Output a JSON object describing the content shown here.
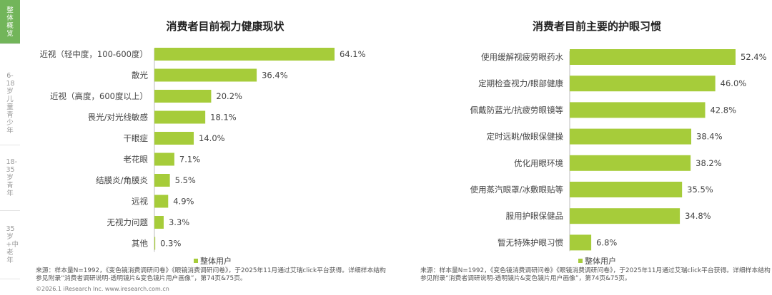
{
  "sidebar": {
    "items": [
      {
        "label": "整体概览",
        "active": true
      },
      {
        "label": "6-18岁儿童青少年",
        "active": false
      },
      {
        "label": "18-35岁青年",
        "active": false
      },
      {
        "label": "35岁+中老年",
        "active": false
      }
    ]
  },
  "colors": {
    "bar": "#a6cc3a",
    "active_nav": "#72b55a"
  },
  "charts": [
    {
      "title": "消费者目前视力健康现状",
      "legend": "整体用户",
      "source": "来源：样本量N=1992，《变色镜消费调研问卷》《眼镜消费调研问卷》，于2025年11月通过艾瑞click平台获得。详细样本结构参见附录“消费者调研说明-透明镜片&变色镜片用户画像”，第74页&75页。"
    },
    {
      "title": "消费者目前主要的护眼习惯",
      "legend": "整体用户",
      "source": "来源：样本量N=1992，《变色镜消费调研问卷》《眼镜消费调研问卷》，于2025年11月通过艾瑞click平台获得。详细样本结构参见附录“消费者调研说明-透明镜片&变色镜片用户画像”，第74页&75页。"
    }
  ],
  "copyright": "©2026.1 iResearch Inc. www.iresearch.com.cn",
  "chart_data": [
    {
      "type": "bar",
      "orientation": "horizontal",
      "title": "消费者目前视力健康现状",
      "categories": [
        "近视（轻中度，100-600度）",
        "散光",
        "近视（高度，600度以上）",
        "畏光/对光线敏感",
        "干眼症",
        "老花眼",
        "结膜炎/角膜炎",
        "远视",
        "无视力问题",
        "其他"
      ],
      "series": [
        {
          "name": "整体用户",
          "values": [
            64.1,
            36.4,
            20.2,
            18.1,
            14.0,
            7.1,
            5.5,
            4.9,
            3.3,
            0.3
          ]
        }
      ],
      "value_labels": [
        "64.1%",
        "36.4%",
        "20.2%",
        "18.1%",
        "14.0%",
        "7.1%",
        "5.5%",
        "4.9%",
        "3.3%",
        "0.3%"
      ],
      "xlim": [
        0,
        64.1
      ],
      "grid": false,
      "legend_position": "bottom"
    },
    {
      "type": "bar",
      "orientation": "horizontal",
      "title": "消费者目前主要的护眼习惯",
      "categories": [
        "使用缓解视疲劳眼药水",
        "定期检查视力/眼部健康",
        "佩戴防蓝光/抗疲劳眼镜等",
        "定时远眺/做眼保健操",
        "优化用眼环境",
        "使用蒸汽眼罩/冰敷眼贴等",
        "服用护眼保健品",
        "暂无特殊护眼习惯"
      ],
      "series": [
        {
          "name": "整体用户",
          "values": [
            52.4,
            46.0,
            42.8,
            38.4,
            38.2,
            35.5,
            34.8,
            6.8
          ]
        }
      ],
      "value_labels": [
        "52.4%",
        "46.0%",
        "42.8%",
        "38.4%",
        "38.2%",
        "35.5%",
        "34.8%",
        "6.8%"
      ],
      "xlim": [
        0,
        52.4
      ],
      "grid": false,
      "legend_position": "bottom"
    }
  ]
}
